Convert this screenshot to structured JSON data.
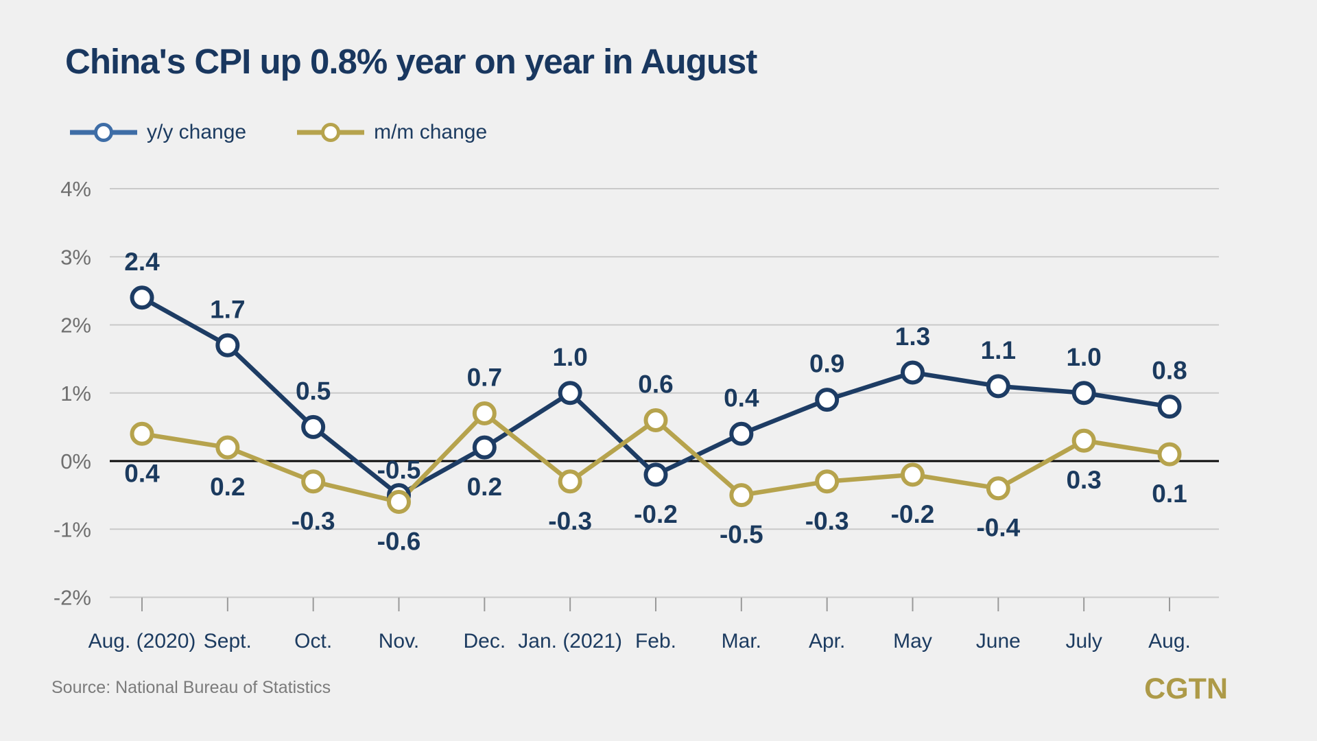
{
  "title": "China's CPI up 0.8% year on year in August",
  "legend": [
    {
      "label": "y/y change",
      "color": "#3e6da6"
    },
    {
      "label": "m/m change",
      "color": "#b6a34d"
    }
  ],
  "source": "Source: National Bureau of Statistics",
  "watermark": "CGTN",
  "colors": {
    "background": "#f0f0f0",
    "title_navy": "#19375f",
    "series_navy": "#1d3c64",
    "series_gold": "#b6a34d",
    "data_label": "#1b3a5e",
    "axis_label_gray": "#6f6f6f",
    "gridline": "#c9c9c9",
    "zero_line": "#0a0a0a",
    "tick_mark": "#999999",
    "x_label_navy": "#1c3b60",
    "source_gray": "#7b7b7b",
    "watermark_gold": "#ad9a48"
  },
  "chart_data": {
    "type": "line",
    "title": "China's CPI up 0.8% year on year in August",
    "categories": [
      "Aug. (2020)",
      "Sept.",
      "Oct.",
      "Nov.",
      "Dec.",
      "Jan. (2021)",
      "Feb.",
      "Mar.",
      "Apr.",
      "May",
      "June",
      "July",
      "Aug."
    ],
    "series": [
      {
        "name": "y/y change",
        "color": "#1d3c64",
        "values": [
          2.4,
          1.7,
          0.5,
          -0.5,
          0.2,
          1.0,
          -0.2,
          0.4,
          0.9,
          1.3,
          1.1,
          1.0,
          0.8
        ],
        "labels": [
          "2.4",
          "1.7",
          "0.5",
          "-0.5",
          "0.2",
          "1.0",
          "-0.2",
          "0.4",
          "0.9",
          "1.3",
          "1.1",
          "1.0",
          "0.8"
        ],
        "label_side": [
          "above",
          "above",
          "above",
          "above-tight",
          "below",
          "above",
          "below",
          "above",
          "above",
          "above",
          "above",
          "above",
          "above"
        ]
      },
      {
        "name": "m/m change",
        "color": "#b6a34d",
        "values": [
          0.4,
          0.2,
          -0.3,
          -0.6,
          0.7,
          -0.3,
          0.6,
          -0.5,
          -0.3,
          -0.2,
          -0.4,
          0.3,
          0.1
        ],
        "labels": [
          "0.4",
          "0.2",
          "-0.3",
          "-0.6",
          "0.7",
          "-0.3",
          "0.6",
          "-0.5",
          "-0.3",
          "-0.2",
          "-0.4",
          "0.3",
          "0.1"
        ],
        "label_side": [
          "below",
          "below",
          "below",
          "below",
          "above",
          "below",
          "above",
          "below",
          "below",
          "below",
          "below",
          "below",
          "below"
        ]
      }
    ],
    "ytick_labels": [
      "4%",
      "3%",
      "2%",
      "1%",
      "0%",
      "-1%",
      "-2%"
    ],
    "ytick_values": [
      4,
      3,
      2,
      1,
      0,
      -1,
      -2
    ],
    "ylim": [
      -2,
      4
    ],
    "xlabel": "",
    "ylabel": "",
    "grid": true,
    "zero_line": true,
    "legend_position": "top-left"
  }
}
